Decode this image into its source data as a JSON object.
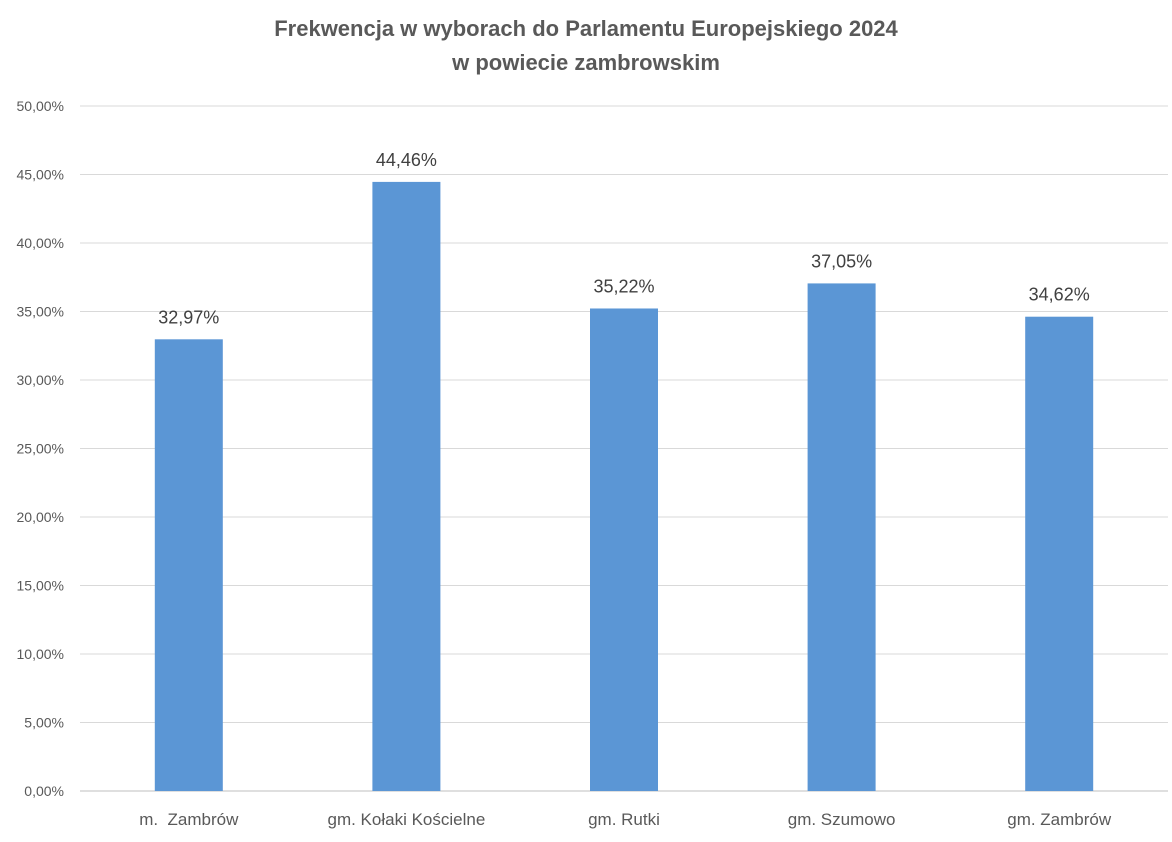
{
  "chart_data": {
    "type": "bar",
    "title": "Frekwencja w wyborach do Parlamentu Europejskiego 2024",
    "subtitle": "w powiecie zambrowskim",
    "categories": [
      "m.  Zambrów",
      "gm. Kołaki Kościelne",
      "gm. Rutki",
      "gm. Szumowo",
      "gm. Zambrów"
    ],
    "values": [
      32.97,
      44.46,
      35.22,
      37.05,
      34.62
    ],
    "data_labels": [
      "32,97%",
      "44,46%",
      "35,22%",
      "37,05%",
      "34,62%"
    ],
    "ylim": [
      0,
      50
    ],
    "ytick_values": [
      0,
      5,
      10,
      15,
      20,
      25,
      30,
      35,
      40,
      45,
      50
    ],
    "ytick_labels": [
      "0,00%",
      "5,00%",
      "10,00%",
      "15,00%",
      "20,00%",
      "25,00%",
      "30,00%",
      "35,00%",
      "40,00%",
      "45,00%",
      "50,00%"
    ],
    "xlabel": "",
    "ylabel": "",
    "grid": true,
    "legend": "none",
    "bar_color": "#5b96d5",
    "grid_color": "#d9d9d9"
  }
}
